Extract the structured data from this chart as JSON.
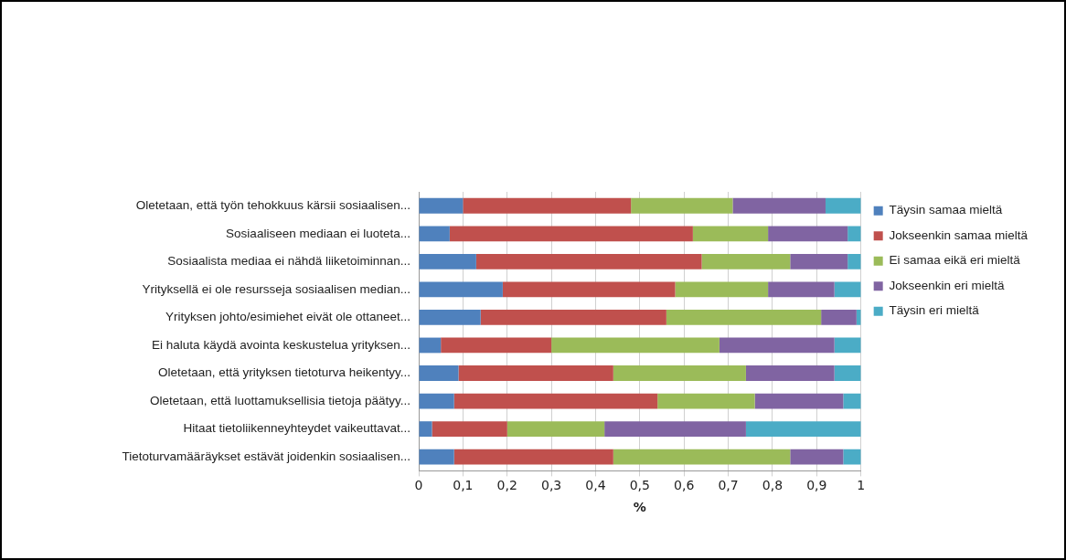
{
  "chart_data": {
    "type": "bar",
    "orientation": "horizontal",
    "stacked": true,
    "xlabel": "%",
    "categories": [
      "Oletetaan, että työn tehokkuus kärsii sosiaalisen...",
      "Sosiaaliseen mediaan ei luoteta...",
      "Sosiaalista mediaa ei nähdä liiketoiminnan...",
      "Yrityksellä ei ole resursseja sosiaalisen median...",
      "Yrityksen johto/esimiehet eivät ole ottaneet...",
      "Ei haluta käydä avointa keskustelua yrityksen...",
      "Oletetaan, että yrityksen tietoturva heikentyy...",
      "Oletetaan, että luottamuksellisia tietoja päätyy...",
      "Hitaat tietoliikenneyhteydet vaikeuttavat...",
      "Tietoturvamääräykset estävät joidenkin sosiaalisen..."
    ],
    "series": [
      {
        "name": "Täysin samaa mieltä",
        "color": "#4f81bd",
        "values": [
          0.1,
          0.07,
          0.13,
          0.19,
          0.14,
          0.05,
          0.09,
          0.08,
          0.03,
          0.08
        ]
      },
      {
        "name": "Jokseenkin samaa mieltä",
        "color": "#c0504d",
        "values": [
          0.38,
          0.55,
          0.51,
          0.39,
          0.42,
          0.25,
          0.35,
          0.46,
          0.17,
          0.36
        ]
      },
      {
        "name": "Ei samaa eikä eri mieltä",
        "color": "#9bbb59",
        "values": [
          0.23,
          0.17,
          0.2,
          0.21,
          0.35,
          0.38,
          0.3,
          0.22,
          0.22,
          0.4
        ]
      },
      {
        "name": "Jokseenkin eri mieltä",
        "color": "#8064a2",
        "values": [
          0.21,
          0.18,
          0.13,
          0.15,
          0.08,
          0.26,
          0.2,
          0.2,
          0.32,
          0.12
        ]
      },
      {
        "name": "Täysin eri mieltä",
        "color": "#4bacc6",
        "values": [
          0.08,
          0.03,
          0.03,
          0.06,
          0.01,
          0.06,
          0.06,
          0.04,
          0.26,
          0.04
        ]
      }
    ],
    "xlim": [
      0,
      1
    ],
    "xticks": [
      0,
      {
        "value": 0.1,
        "label": "0,1"
      },
      {
        "value": 0.2,
        "label": "0,2"
      },
      {
        "value": 0.3,
        "label": "0,3"
      },
      {
        "value": 0.4,
        "label": "0,4"
      },
      {
        "value": 0.5,
        "label": "0,5"
      },
      {
        "value": 0.6,
        "label": "0,6"
      },
      {
        "value": 0.7,
        "label": "0,7"
      },
      {
        "value": 0.8,
        "label": "0,8"
      },
      {
        "value": 0.9,
        "label": "0,9"
      },
      1
    ],
    "grid": "x",
    "legend": "right"
  }
}
